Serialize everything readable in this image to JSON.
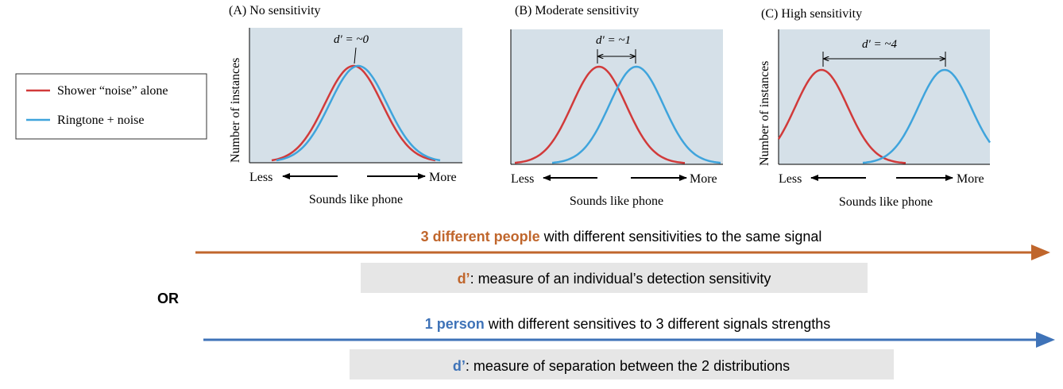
{
  "legend": {
    "items": [
      {
        "label": "Shower “noise” alone",
        "color": "#d13a3a"
      },
      {
        "label": "Ringtone + noise",
        "color": "#3fa4dc"
      }
    ]
  },
  "panels": [
    {
      "title": "(A)  No sensitivity",
      "dprime": "d′ = ~0",
      "ylabel": "Number of instances",
      "xlabel": "Sounds like phone",
      "less": "Less",
      "more": "More"
    },
    {
      "title": "(B)  Moderate sensitivity",
      "dprime": "d′ = ~1",
      "ylabel": "",
      "xlabel": "Sounds like phone",
      "less": "Less",
      "more": "More"
    },
    {
      "title": "(C)  High sensitivity",
      "dprime": "d′ = ~4",
      "ylabel": "Number of instances",
      "xlabel": "Sounds like phone",
      "less": "Less",
      "more": "More"
    }
  ],
  "row1": {
    "highlight": "3 different people",
    "rest": " with different sensitivities to the same signal",
    "box_key": "d’",
    "box_text": ": measure of an individual’s detection sensitivity",
    "color": "#c0662c"
  },
  "or_label": "OR",
  "row2": {
    "highlight": "1 person",
    "rest": " with different sensitives to 3 different signals strengths",
    "box_key": "d’",
    "box_text": ": measure of separation between the 2 distributions",
    "color": "#3f73b8"
  },
  "colors": {
    "plot_bg": "#d5e0e8",
    "noise": "#d13a3a",
    "signal": "#3fa4dc",
    "box_bg": "#e6e6e6"
  }
}
